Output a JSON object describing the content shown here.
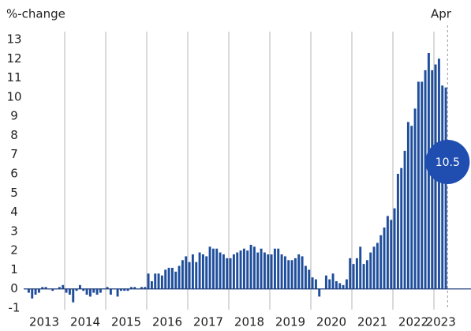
{
  "chart_data": {
    "type": "bar",
    "y_label": "%-change",
    "annotation": "Apr",
    "x_labels": [
      "2013",
      "2014",
      "2015",
      "2016",
      "2017",
      "2018",
      "2019",
      "2020",
      "2021",
      "2022",
      "2023"
    ],
    "color": "#1f4e9c",
    "values": [
      0.0,
      -0.2,
      -0.5,
      -0.3,
      -0.2,
      0.1,
      0.1,
      0.0,
      -0.1,
      0.0,
      0.1,
      0.2,
      -0.2,
      -0.3,
      -0.7,
      -0.1,
      0.2,
      -0.1,
      -0.3,
      -0.4,
      -0.2,
      -0.3,
      -0.2,
      0.0,
      0.1,
      -0.3,
      0.0,
      -0.4,
      -0.1,
      -0.1,
      -0.1,
      0.1,
      0.1,
      0.0,
      0.1,
      0.1,
      0.8,
      0.4,
      0.8,
      0.8,
      0.7,
      1.0,
      1.1,
      1.1,
      0.9,
      1.2,
      1.5,
      1.7,
      1.4,
      1.8,
      1.4,
      1.9,
      1.8,
      1.7,
      2.2,
      2.1,
      2.1,
      1.9,
      1.8,
      1.6,
      1.6,
      1.8,
      1.9,
      2.0,
      2.1,
      2.0,
      2.3,
      2.2,
      1.9,
      2.1,
      1.9,
      1.8,
      1.8,
      2.1,
      2.1,
      1.8,
      1.7,
      1.5,
      1.5,
      1.6,
      1.8,
      1.7,
      1.2,
      1.0,
      0.6,
      0.5,
      -0.4,
      0.0,
      0.7,
      0.5,
      0.8,
      0.4,
      0.3,
      0.2,
      0.5,
      1.6,
      1.3,
      1.6,
      2.2,
      1.3,
      1.5,
      1.9,
      2.2,
      2.4,
      2.8,
      3.2,
      3.8,
      3.6,
      4.2,
      6.0,
      6.3,
      7.2,
      8.7,
      8.5,
      9.4,
      10.8,
      10.8,
      11.4,
      12.3,
      11.4,
      11.7,
      12.0,
      10.6,
      10.5
    ],
    "ylim": [
      -1,
      13
    ],
    "yticks": [
      -1,
      0,
      1,
      2,
      3,
      4,
      5,
      6,
      7,
      8,
      9,
      10,
      11,
      12,
      13
    ]
  }
}
